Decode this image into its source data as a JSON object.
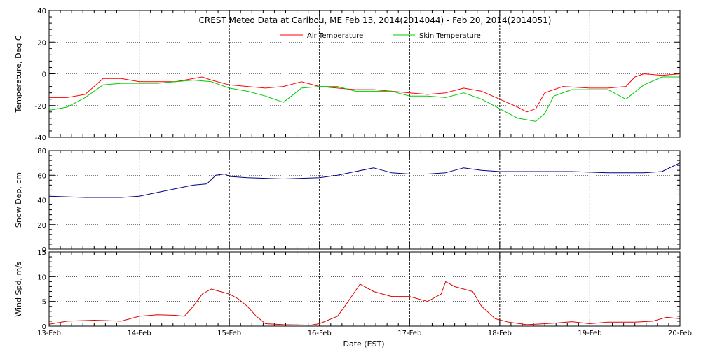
{
  "chart_data": {
    "type": "line",
    "title": "CREST Meteo Data at Caribou, ME   Feb 13, 2014(2014044) - Feb 20, 2014(2014051)",
    "xlabel": "Date (EST)",
    "x_ticks": [
      "13-Feb",
      "14-Feb",
      "15-Feb",
      "16-Feb",
      "17-Feb",
      "18-Feb",
      "19-Feb",
      "20-Feb"
    ],
    "xlim": [
      0,
      7
    ],
    "x_unit": "days since 13-Feb 00:00 EST",
    "grid": true,
    "panels": [
      {
        "id": "temperature",
        "ylabel": "Temperature, Deg C",
        "ylim": [
          -40,
          40
        ],
        "yticks": [
          -40,
          -20,
          0,
          20,
          40
        ],
        "legend_position": "top-center",
        "series": [
          {
            "name": "Air Temperature",
            "color": "#ff0000",
            "points": [
              [
                0,
                -15
              ],
              [
                0.2,
                -15
              ],
              [
                0.4,
                -13
              ],
              [
                0.6,
                -3
              ],
              [
                0.8,
                -3
              ],
              [
                1.0,
                -5
              ],
              [
                1.2,
                -5
              ],
              [
                1.4,
                -5
              ],
              [
                1.6,
                -3
              ],
              [
                1.7,
                -2
              ],
              [
                1.8,
                -4
              ],
              [
                2.0,
                -7
              ],
              [
                2.2,
                -8
              ],
              [
                2.4,
                -9
              ],
              [
                2.6,
                -8
              ],
              [
                2.8,
                -5
              ],
              [
                3.0,
                -8
              ],
              [
                3.2,
                -9
              ],
              [
                3.4,
                -10
              ],
              [
                3.6,
                -10
              ],
              [
                3.8,
                -11
              ],
              [
                4.0,
                -12
              ],
              [
                4.2,
                -13
              ],
              [
                4.4,
                -12
              ],
              [
                4.6,
                -9
              ],
              [
                4.8,
                -11
              ],
              [
                5.0,
                -16
              ],
              [
                5.2,
                -21
              ],
              [
                5.3,
                -24
              ],
              [
                5.4,
                -22
              ],
              [
                5.5,
                -12
              ],
              [
                5.7,
                -8
              ],
              [
                6.0,
                -9
              ],
              [
                6.2,
                -9
              ],
              [
                6.4,
                -8
              ],
              [
                6.5,
                -2
              ],
              [
                6.6,
                0
              ],
              [
                6.8,
                -1
              ],
              [
                7.0,
                0
              ]
            ]
          },
          {
            "name": "Skin Temperature",
            "color": "#00cc00",
            "points": [
              [
                0,
                -23
              ],
              [
                0.2,
                -21
              ],
              [
                0.4,
                -15
              ],
              [
                0.6,
                -7
              ],
              [
                0.8,
                -6
              ],
              [
                1.0,
                -6
              ],
              [
                1.2,
                -6
              ],
              [
                1.4,
                -5
              ],
              [
                1.6,
                -4
              ],
              [
                1.8,
                -5
              ],
              [
                2.0,
                -9
              ],
              [
                2.2,
                -11
              ],
              [
                2.4,
                -14
              ],
              [
                2.6,
                -18
              ],
              [
                2.8,
                -9
              ],
              [
                3.0,
                -8
              ],
              [
                3.2,
                -8
              ],
              [
                3.4,
                -11
              ],
              [
                3.6,
                -11
              ],
              [
                3.8,
                -11
              ],
              [
                4.0,
                -14
              ],
              [
                4.2,
                -14
              ],
              [
                4.4,
                -15
              ],
              [
                4.6,
                -12
              ],
              [
                4.8,
                -16
              ],
              [
                5.0,
                -22
              ],
              [
                5.2,
                -28
              ],
              [
                5.4,
                -30
              ],
              [
                5.5,
                -25
              ],
              [
                5.6,
                -14
              ],
              [
                5.8,
                -10
              ],
              [
                6.0,
                -10
              ],
              [
                6.2,
                -10
              ],
              [
                6.4,
                -16
              ],
              [
                6.6,
                -7
              ],
              [
                6.8,
                -2
              ],
              [
                7.0,
                -2
              ]
            ]
          }
        ]
      },
      {
        "id": "snow",
        "ylabel": "Snow Dep, cm",
        "ylim": [
          0,
          80
        ],
        "yticks": [
          0,
          20,
          40,
          60,
          80
        ],
        "series": [
          {
            "name": "",
            "color": "#000080",
            "points": [
              [
                0,
                43
              ],
              [
                0.4,
                42
              ],
              [
                0.8,
                42
              ],
              [
                1.0,
                43
              ],
              [
                1.2,
                46
              ],
              [
                1.4,
                49
              ],
              [
                1.6,
                52
              ],
              [
                1.75,
                53
              ],
              [
                1.85,
                60
              ],
              [
                1.95,
                61
              ],
              [
                2.0,
                59
              ],
              [
                2.2,
                58
              ],
              [
                2.6,
                57
              ],
              [
                3.0,
                58
              ],
              [
                3.2,
                60
              ],
              [
                3.4,
                63
              ],
              [
                3.6,
                66
              ],
              [
                3.8,
                62
              ],
              [
                4.0,
                61
              ],
              [
                4.2,
                61
              ],
              [
                4.4,
                62
              ],
              [
                4.6,
                66
              ],
              [
                4.8,
                64
              ],
              [
                5.0,
                63
              ],
              [
                5.4,
                63
              ],
              [
                5.8,
                63
              ],
              [
                6.2,
                62
              ],
              [
                6.6,
                62
              ],
              [
                6.8,
                63
              ],
              [
                7.0,
                70
              ]
            ]
          }
        ]
      },
      {
        "id": "wind",
        "ylabel": "Wind Spd, m/s",
        "ylim": [
          0,
          15
        ],
        "yticks": [
          0,
          5,
          10,
          15
        ],
        "series": [
          {
            "name": "",
            "color": "#dd0000",
            "points": [
              [
                0,
                0.4
              ],
              [
                0.2,
                1.0
              ],
              [
                0.5,
                1.2
              ],
              [
                0.8,
                1.0
              ],
              [
                1.0,
                2.0
              ],
              [
                1.2,
                2.3
              ],
              [
                1.4,
                2.2
              ],
              [
                1.5,
                2.0
              ],
              [
                1.6,
                4.0
              ],
              [
                1.7,
                6.5
              ],
              [
                1.8,
                7.5
              ],
              [
                2.0,
                6.5
              ],
              [
                2.1,
                5.5
              ],
              [
                2.2,
                4.0
              ],
              [
                2.3,
                2.0
              ],
              [
                2.4,
                0.5
              ],
              [
                2.6,
                0.3
              ],
              [
                2.9,
                0.2
              ],
              [
                3.0,
                0.5
              ],
              [
                3.2,
                2.0
              ],
              [
                3.3,
                4.5
              ],
              [
                3.45,
                8.5
              ],
              [
                3.6,
                7.0
              ],
              [
                3.8,
                6.0
              ],
              [
                4.0,
                6.0
              ],
              [
                4.2,
                5.0
              ],
              [
                4.35,
                6.5
              ],
              [
                4.4,
                9.0
              ],
              [
                4.5,
                8.0
              ],
              [
                4.7,
                7.0
              ],
              [
                4.8,
                4.0
              ],
              [
                4.95,
                1.5
              ],
              [
                5.1,
                0.8
              ],
              [
                5.3,
                0.3
              ],
              [
                5.6,
                0.6
              ],
              [
                5.8,
                0.9
              ],
              [
                6.0,
                0.5
              ],
              [
                6.2,
                0.8
              ],
              [
                6.5,
                0.8
              ],
              [
                6.7,
                1.0
              ],
              [
                6.85,
                1.8
              ],
              [
                7.0,
                1.5
              ]
            ]
          }
        ]
      }
    ]
  }
}
